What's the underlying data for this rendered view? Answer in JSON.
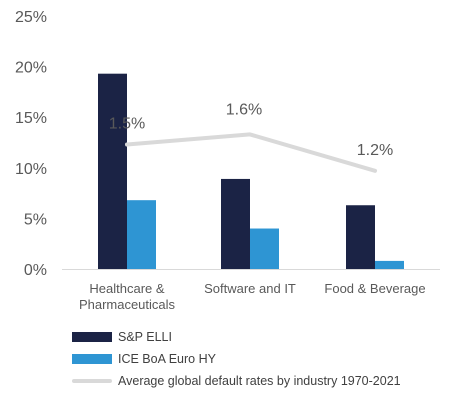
{
  "chart_data": {
    "type": "bar",
    "categories": [
      "Healthcare &\nPharmaceuticals",
      "Software and IT",
      "Food & Beverage"
    ],
    "series": [
      {
        "name": "S&P ELLI",
        "values": [
          19.3,
          8.9,
          6.3
        ],
        "color": "#1b2345"
      },
      {
        "name": "ICE BoA Euro HY",
        "values": [
          6.8,
          4.0,
          0.8
        ],
        "color": "#2e95d3"
      }
    ],
    "overlay_line": {
      "name": "Average global default rates by industry 1970-2021",
      "labels": [
        "1.5%",
        "1.6%",
        "1.2%"
      ],
      "plotted_positions": [
        12.3,
        13.3,
        9.7
      ],
      "color": "#d9d9d9"
    },
    "yticks": [
      "0%",
      "5%",
      "10%",
      "15%",
      "20%",
      "25%"
    ],
    "ylim": [
      0,
      25
    ],
    "grid": false,
    "legend_position": "bottom-left"
  }
}
